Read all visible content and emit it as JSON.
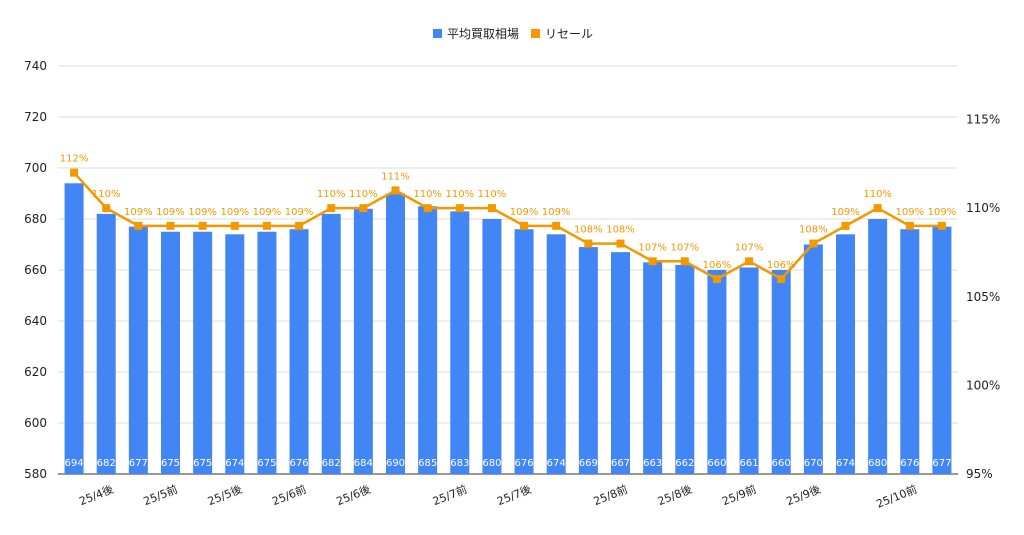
{
  "chart_data": {
    "type": "bar",
    "categories": [
      "",
      "25/4後",
      "",
      "25/5前",
      "",
      "25/5後",
      "",
      "25/6前",
      "",
      "25/6後",
      "",
      "",
      "25/7前",
      "",
      "25/7後",
      "",
      "",
      "25/8前",
      "",
      "25/8後",
      "",
      "25/9前",
      "",
      "25/9後",
      "",
      "",
      "25/10前",
      ""
    ],
    "series": [
      {
        "name": "平均買取相場",
        "type": "bar",
        "axis": "left",
        "color": "#4285f4",
        "values": [
          694,
          682,
          677,
          675,
          675,
          674,
          675,
          676,
          682,
          684,
          690,
          685,
          683,
          680,
          676,
          674,
          669,
          667,
          663,
          662,
          660,
          661,
          660,
          670,
          674,
          680,
          676,
          677
        ],
        "labels": [
          "694",
          "682",
          "677",
          "675",
          "675",
          "674",
          "675",
          "676",
          "682",
          "684",
          "690",
          "685",
          "683",
          "680",
          "676",
          "674",
          "669",
          "667",
          "663",
          "662",
          "660",
          "661",
          "660",
          "670",
          "674",
          "680",
          "676",
          "677"
        ]
      },
      {
        "name": "リセール",
        "type": "line",
        "axis": "right",
        "color": "#f29900",
        "values": [
          112,
          110,
          109,
          109,
          109,
          109,
          109,
          109,
          110,
          110,
          111,
          110,
          110,
          110,
          109,
          109,
          108,
          108,
          107,
          107,
          106,
          107,
          106,
          108,
          109,
          110,
          109,
          109
        ],
        "labels": [
          "112%",
          "110%",
          "109%",
          "109%",
          "109%",
          "109%",
          "109%",
          "109%",
          "110%",
          "110%",
          "111%",
          "110%",
          "110%",
          "110%",
          "109%",
          "109%",
          "108%",
          "108%",
          "107%",
          "107%",
          "106%",
          "107%",
          "106%",
          "108%",
          "109%",
          "110%",
          "109%",
          "109%"
        ]
      }
    ],
    "y_left": {
      "ylim": [
        580,
        740
      ],
      "ticks": [
        "580",
        "600",
        "620",
        "640",
        "660",
        "680",
        "700",
        "720",
        "740"
      ]
    },
    "y_right": {
      "ylim": [
        95,
        118
      ],
      "ticks": [
        "95%",
        "100%",
        "105%",
        "110%",
        "115%"
      ]
    },
    "grid": true,
    "legend": "top-center"
  }
}
